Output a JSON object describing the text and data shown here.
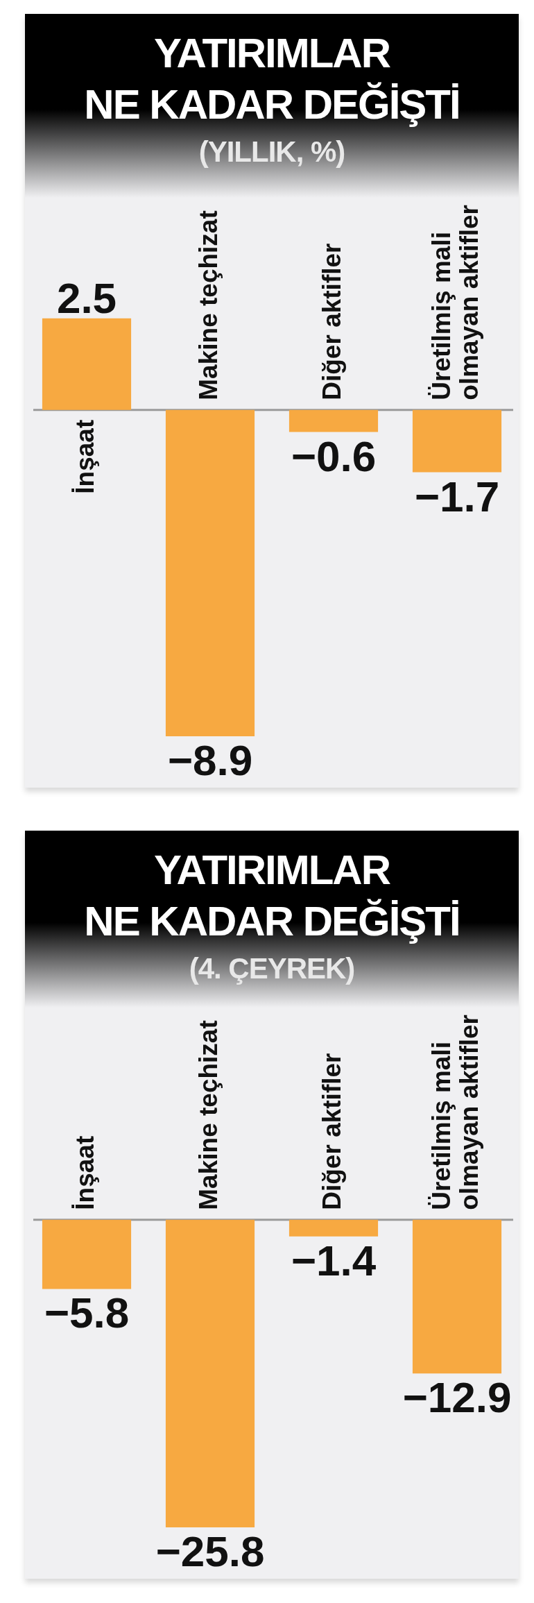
{
  "chart_data": [
    {
      "type": "bar",
      "title": "YATIRIMLAR NE KADAR DEĞİŞTİ",
      "subtitle": "(YILLIK, %)",
      "categories": [
        "İnşaat",
        "Makine teçhizat",
        "Diğer aktifler",
        "Üretilmiş mali olmayan aktifler"
      ],
      "values": [
        2.5,
        -8.9,
        -0.6,
        -1.7
      ],
      "color": "#f7a941",
      "data_labels": true
    },
    {
      "type": "bar",
      "title": "YATIRIMLAR NE KADAR DEĞİŞTİ",
      "subtitle": "(4. ÇEYREK)",
      "categories": [
        "İnşaat",
        "Makine teçhizat",
        "Diğer aktifler",
        "Üretilmiş mali olmayan aktifler"
      ],
      "values": [
        -5.8,
        -25.8,
        -1.4,
        -12.9
      ],
      "color": "#f7a941",
      "data_labels": true
    }
  ]
}
